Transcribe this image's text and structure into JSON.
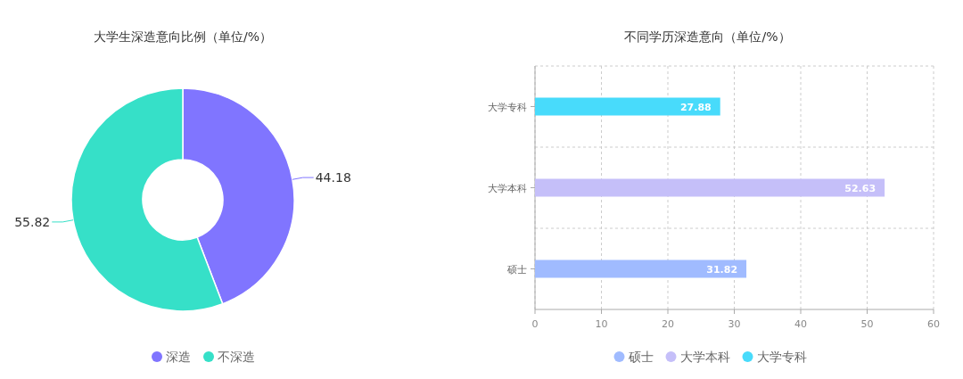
{
  "chart_data": [
    {
      "type": "donut",
      "title": "大学生深造意向比例（单位/%）",
      "categories": [
        "深造",
        "不深造"
      ],
      "values": [
        44.18,
        55.82
      ],
      "colors": [
        "#8075ff",
        "#36e0c8"
      ],
      "data_labels": true,
      "legend": "bottom"
    },
    {
      "type": "bar",
      "title": "不同学历深造意向（单位/%）",
      "orientation": "horizontal",
      "stacked": true,
      "categories": [
        "大学专科",
        "大学本科",
        "硕士"
      ],
      "series": [
        {
          "name": "硕士",
          "color": "#a0bbff",
          "values": [
            null,
            null,
            31.82
          ]
        },
        {
          "name": "大学本科",
          "color": "#c5bff9",
          "values": [
            null,
            52.63,
            null
          ]
        },
        {
          "name": "大学专科",
          "color": "#48dbfb",
          "values": [
            27.88,
            null,
            null
          ]
        }
      ],
      "xlim": [
        0,
        60
      ],
      "xticks": [
        0,
        10,
        20,
        30,
        40,
        50,
        60
      ],
      "grid": true,
      "legend": "bottom",
      "data_labels": true
    }
  ]
}
